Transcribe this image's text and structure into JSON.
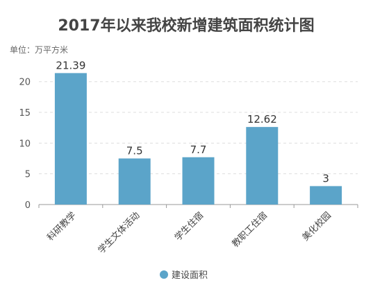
{
  "chart_data": {
    "type": "bar",
    "title": "2017年以来我校新增建筑面积统计图",
    "unit_label": "单位：万平方米",
    "categories": [
      "科研教学",
      "学生文体活动",
      "学生住宿",
      "教职工住宿",
      "美化校园"
    ],
    "series": [
      {
        "name": "建设面积",
        "values": [
          21.39,
          7.5,
          7.7,
          12.62,
          3
        ],
        "color": "#5ba4c9"
      }
    ],
    "data_labels": [
      "21.39",
      "7.5",
      "7.7",
      "12.62",
      "3"
    ],
    "ylim": [
      0,
      22
    ],
    "yticks": [
      0,
      5,
      10,
      15,
      20
    ],
    "grid": "horizontal-dashed",
    "legend_position": "bottom-center",
    "xlabel": "",
    "ylabel": ""
  }
}
